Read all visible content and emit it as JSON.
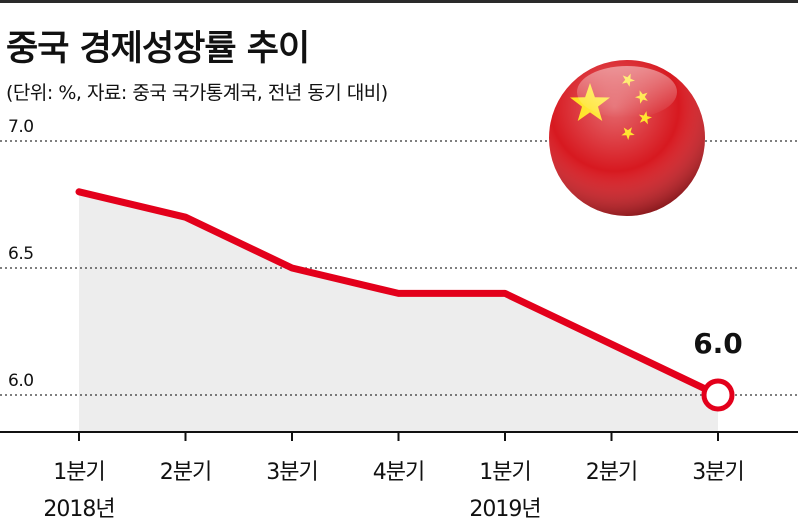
{
  "title": "중국 경제성장률 추이",
  "subtitle": "(단위: %, 자료: 중국 국가통계국, 전년 동기 대비)",
  "colors": {
    "line": "#e3001b",
    "area": "#ededed",
    "grid": "#333333",
    "flag_red": "#d71920",
    "flag_star": "#ffde00"
  },
  "chart_data": {
    "type": "area",
    "categories": [
      "1분기",
      "2분기",
      "3분기",
      "4분기",
      "1분기",
      "2분기",
      "3분기"
    ],
    "year_labels": [
      {
        "index": 0,
        "label": "2018년"
      },
      {
        "index": 4,
        "label": "2019년"
      }
    ],
    "values": [
      6.8,
      6.7,
      6.5,
      6.4,
      6.4,
      6.2,
      6.0
    ],
    "yticks": [
      "7.0",
      "6.5",
      "6.0"
    ],
    "ylim": [
      5.9,
      7.0
    ],
    "grid": "dotted horizontal",
    "highlight": {
      "index": 6,
      "label": "6.0"
    },
    "decoration_icon": "china-flag-icon"
  }
}
